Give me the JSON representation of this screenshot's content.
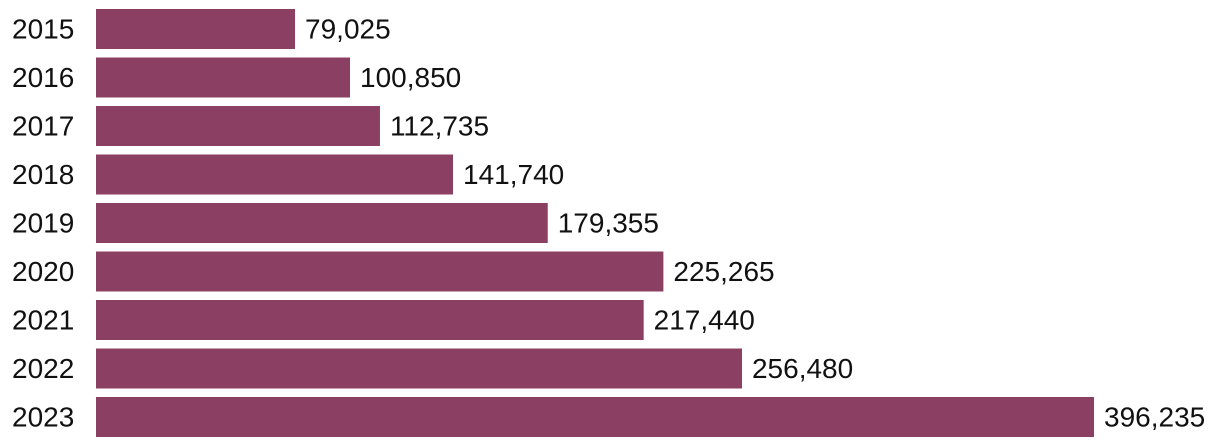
{
  "chart_data": {
    "type": "bar",
    "orientation": "horizontal",
    "categories": [
      "2015",
      "2016",
      "2017",
      "2018",
      "2019",
      "2020",
      "2021",
      "2022",
      "2023"
    ],
    "values": [
      79025,
      100850,
      112735,
      141740,
      179355,
      225265,
      217440,
      256480,
      396235
    ],
    "value_labels": [
      "79,025",
      "100,850",
      "112,735",
      "141,740",
      "179,355",
      "225,265",
      "217,440",
      "256,480",
      "396,235"
    ],
    "title": "",
    "xlabel": "",
    "ylabel": "",
    "xlim": [
      0,
      396235
    ],
    "grid": false,
    "legend": "none",
    "bar_color": "#8b3f62"
  }
}
